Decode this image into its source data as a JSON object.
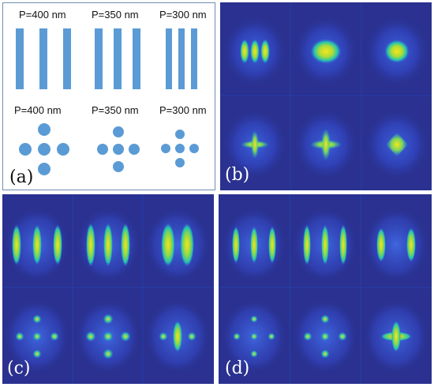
{
  "panel_a": {
    "top_labels": [
      "P=400 nm",
      "P=350 nm",
      "P=300 nm"
    ],
    "bottom_labels": [
      "P=400 nm",
      "P=350 nm",
      "P=300 nm"
    ],
    "letter": "(a)",
    "shape_color": "#5b9bd5"
  },
  "panel_b": {
    "letter": "(b)"
  },
  "panel_c": {
    "letter": "(c)"
  },
  "panel_d": {
    "letter": "(d)"
  },
  "colors": {
    "field_background": "#2a3190",
    "field_low": "#3a5bd8",
    "field_mid": "#22c3b0",
    "field_high": "#f4e31e"
  }
}
